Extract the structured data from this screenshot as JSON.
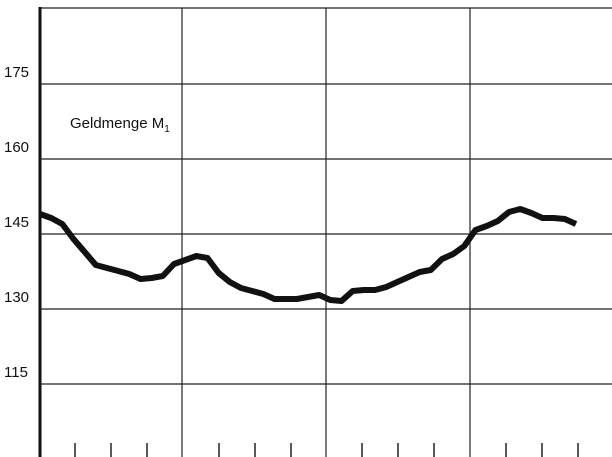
{
  "chart_data": {
    "type": "line",
    "annotation": {
      "text": "Geldmenge M",
      "subscript": "1"
    },
    "categories": [
      null,
      null,
      null,
      null,
      null,
      null,
      null,
      null,
      null,
      null,
      null,
      null,
      null,
      null,
      null,
      null,
      null,
      null,
      null,
      null,
      null,
      null,
      null,
      null,
      null,
      null,
      null,
      null,
      null,
      null,
      null,
      null,
      null,
      null,
      null,
      null,
      null,
      null,
      null,
      null,
      null,
      null,
      null,
      null,
      null,
      null,
      null,
      null,
      null
    ],
    "values": [
      149,
      148.2,
      147,
      144,
      141.4,
      138.8,
      138.2,
      137.6,
      137,
      136,
      136.2,
      136.6,
      139,
      139.8,
      140.6,
      140.2,
      137.2,
      135.4,
      134.2,
      133.6,
      133,
      132,
      132,
      132,
      132.4,
      132.8,
      131.8,
      131.6,
      133.6,
      133.8,
      133.8,
      134.4,
      135.4,
      136.4,
      137.4,
      137.8,
      140,
      141,
      142.6,
      145.8,
      146.6,
      147.6,
      149.4,
      150,
      149.2,
      148.2,
      148.2,
      148,
      147
    ],
    "color": "#111111",
    "ylim": [
      101,
      190
    ],
    "yticks": [
      115,
      130,
      145,
      160,
      175
    ],
    "grid": true
  }
}
